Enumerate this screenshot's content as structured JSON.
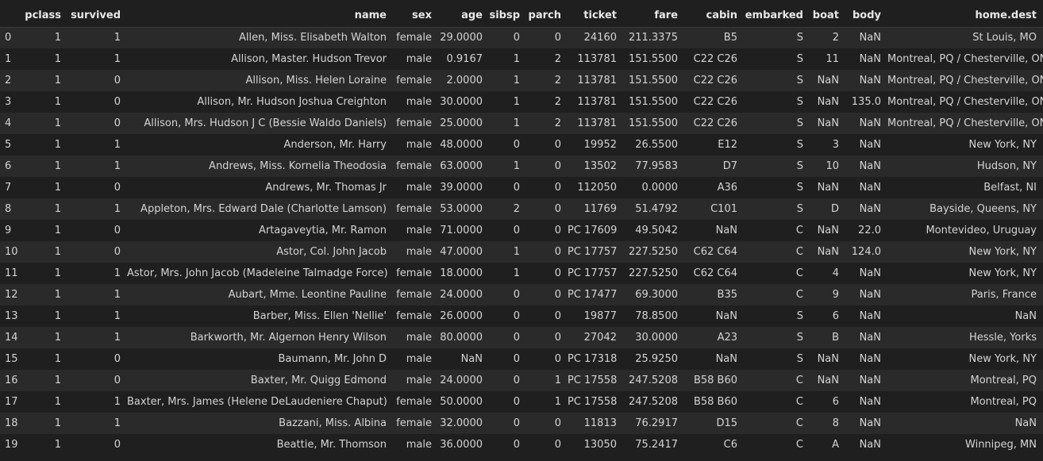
{
  "columns": [
    "",
    "pclass",
    "survived",
    "name",
    "sex",
    "age",
    "sibsp",
    "parch",
    "ticket",
    "fare",
    "cabin",
    "embarked",
    "boat",
    "body",
    "home.dest"
  ],
  "rows": [
    [
      "0",
      "1",
      "1",
      "Allen, Miss. Elisabeth Walton",
      "female",
      "29.0000",
      "0",
      "0",
      "24160",
      "211.3375",
      "B5",
      "S",
      "2",
      "NaN",
      "St Louis, MO"
    ],
    [
      "1",
      "1",
      "1",
      "Allison, Master. Hudson Trevor",
      "male",
      "0.9167",
      "1",
      "2",
      "113781",
      "151.5500",
      "C22 C26",
      "S",
      "11",
      "NaN",
      "Montreal, PQ / Chesterville, ON"
    ],
    [
      "2",
      "1",
      "0",
      "Allison, Miss. Helen Loraine",
      "female",
      "2.0000",
      "1",
      "2",
      "113781",
      "151.5500",
      "C22 C26",
      "S",
      "NaN",
      "NaN",
      "Montreal, PQ / Chesterville, ON"
    ],
    [
      "3",
      "1",
      "0",
      "Allison, Mr. Hudson Joshua Creighton",
      "male",
      "30.0000",
      "1",
      "2",
      "113781",
      "151.5500",
      "C22 C26",
      "S",
      "NaN",
      "135.0",
      "Montreal, PQ / Chesterville, ON"
    ],
    [
      "4",
      "1",
      "0",
      "Allison, Mrs. Hudson J C (Bessie Waldo Daniels)",
      "female",
      "25.0000",
      "1",
      "2",
      "113781",
      "151.5500",
      "C22 C26",
      "S",
      "NaN",
      "NaN",
      "Montreal, PQ / Chesterville, ON"
    ],
    [
      "5",
      "1",
      "1",
      "Anderson, Mr. Harry",
      "male",
      "48.0000",
      "0",
      "0",
      "19952",
      "26.5500",
      "E12",
      "S",
      "3",
      "NaN",
      "New York, NY"
    ],
    [
      "6",
      "1",
      "1",
      "Andrews, Miss. Kornelia Theodosia",
      "female",
      "63.0000",
      "1",
      "0",
      "13502",
      "77.9583",
      "D7",
      "S",
      "10",
      "NaN",
      "Hudson, NY"
    ],
    [
      "7",
      "1",
      "0",
      "Andrews, Mr. Thomas Jr",
      "male",
      "39.0000",
      "0",
      "0",
      "112050",
      "0.0000",
      "A36",
      "S",
      "NaN",
      "NaN",
      "Belfast, NI"
    ],
    [
      "8",
      "1",
      "1",
      "Appleton, Mrs. Edward Dale (Charlotte Lamson)",
      "female",
      "53.0000",
      "2",
      "0",
      "11769",
      "51.4792",
      "C101",
      "S",
      "D",
      "NaN",
      "Bayside, Queens, NY"
    ],
    [
      "9",
      "1",
      "0",
      "Artagaveytia, Mr. Ramon",
      "male",
      "71.0000",
      "0",
      "0",
      "PC 17609",
      "49.5042",
      "NaN",
      "C",
      "NaN",
      "22.0",
      "Montevideo, Uruguay"
    ],
    [
      "10",
      "1",
      "0",
      "Astor, Col. John Jacob",
      "male",
      "47.0000",
      "1",
      "0",
      "PC 17757",
      "227.5250",
      "C62 C64",
      "C",
      "NaN",
      "124.0",
      "New York, NY"
    ],
    [
      "11",
      "1",
      "1",
      "Astor, Mrs. John Jacob (Madeleine Talmadge Force)",
      "female",
      "18.0000",
      "1",
      "0",
      "PC 17757",
      "227.5250",
      "C62 C64",
      "C",
      "4",
      "NaN",
      "New York, NY"
    ],
    [
      "12",
      "1",
      "1",
      "Aubart, Mme. Leontine Pauline",
      "female",
      "24.0000",
      "0",
      "0",
      "PC 17477",
      "69.3000",
      "B35",
      "C",
      "9",
      "NaN",
      "Paris, France"
    ],
    [
      "13",
      "1",
      "1",
      "Barber, Miss. Ellen 'Nellie'",
      "female",
      "26.0000",
      "0",
      "0",
      "19877",
      "78.8500",
      "NaN",
      "S",
      "6",
      "NaN",
      "NaN"
    ],
    [
      "14",
      "1",
      "1",
      "Barkworth, Mr. Algernon Henry Wilson",
      "male",
      "80.0000",
      "0",
      "0",
      "27042",
      "30.0000",
      "A23",
      "S",
      "B",
      "NaN",
      "Hessle, Yorks"
    ],
    [
      "15",
      "1",
      "0",
      "Baumann, Mr. John D",
      "male",
      "NaN",
      "0",
      "0",
      "PC 17318",
      "25.9250",
      "NaN",
      "S",
      "NaN",
      "NaN",
      "New York, NY"
    ],
    [
      "16",
      "1",
      "0",
      "Baxter, Mr. Quigg Edmond",
      "male",
      "24.0000",
      "0",
      "1",
      "PC 17558",
      "247.5208",
      "B58 B60",
      "C",
      "NaN",
      "NaN",
      "Montreal, PQ"
    ],
    [
      "17",
      "1",
      "1",
      "Baxter, Mrs. James (Helene DeLaudeniere Chaput)",
      "female",
      "50.0000",
      "0",
      "1",
      "PC 17558",
      "247.5208",
      "B58 B60",
      "C",
      "6",
      "NaN",
      "Montreal, PQ"
    ],
    [
      "18",
      "1",
      "1",
      "Bazzani, Miss. Albina",
      "female",
      "32.0000",
      "0",
      "0",
      "11813",
      "76.2917",
      "D15",
      "C",
      "8",
      "NaN",
      "NaN"
    ],
    [
      "19",
      "1",
      "0",
      "Beattie, Mr. Thomson",
      "male",
      "36.0000",
      "0",
      "0",
      "13050",
      "75.2417",
      "C6",
      "C",
      "A",
      "NaN",
      "Winnipeg, MN"
    ]
  ]
}
